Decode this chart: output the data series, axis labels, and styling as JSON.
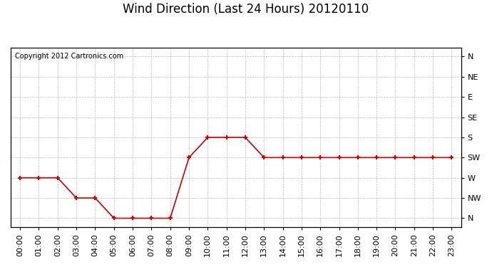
{
  "title": "Wind Direction (Last 24 Hours) 20120110",
  "copyright_text": "Copyright 2012 Cartronics.com",
  "background_color": "#ffffff",
  "plot_bg_color": "#ffffff",
  "line_color": "#cc0000",
  "marker": "+",
  "marker_color": "#cc0000",
  "grid_color": "#bbbbbb",
  "hours": [
    0,
    1,
    2,
    3,
    4,
    5,
    6,
    7,
    8,
    9,
    10,
    11,
    12,
    13,
    14,
    15,
    16,
    17,
    18,
    19,
    20,
    21,
    22,
    23
  ],
  "wind_values": [
    270,
    270,
    270,
    315,
    315,
    360,
    360,
    360,
    360,
    225,
    180,
    180,
    180,
    225,
    225,
    225,
    225,
    225,
    225,
    225,
    225,
    225,
    225,
    225
  ],
  "ytick_labels_right": [
    "N",
    "NW",
    "W",
    "SW",
    "S",
    "SE",
    "E",
    "NE",
    "N"
  ],
  "ytick_values": [
    360,
    315,
    270,
    225,
    180,
    135,
    90,
    45,
    0
  ],
  "title_fontsize": 12,
  "copyright_fontsize": 7,
  "tick_fontsize": 8,
  "figsize": [
    6.9,
    3.75
  ],
  "dpi": 100
}
